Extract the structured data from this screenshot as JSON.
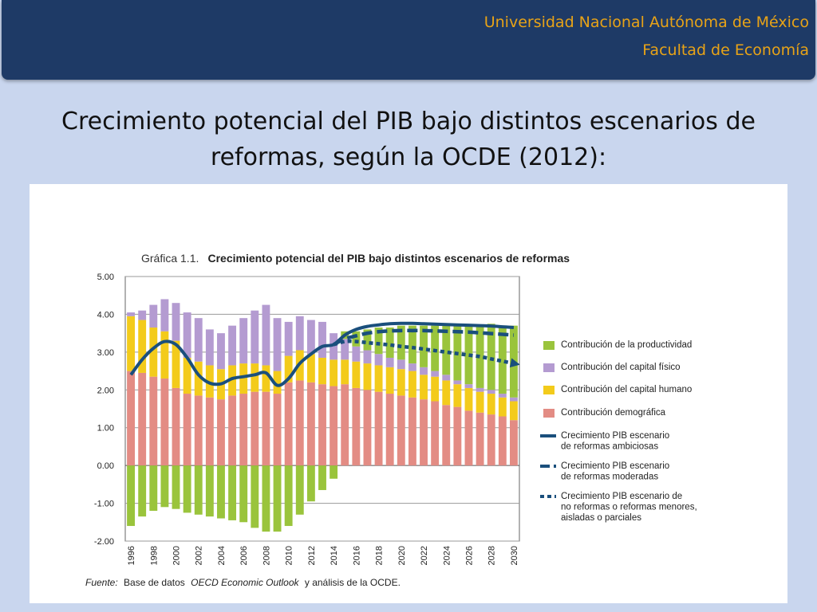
{
  "header": {
    "university": "Universidad Nacional Autónoma de México",
    "faculty": "Facultad de Economía"
  },
  "slide_title_line1": "Crecimiento potencial del PIB bajo distintos escenarios de",
  "slide_title_line2": "reformas, según la OCDE (2012):",
  "colors": {
    "header_bg": "#1e3a66",
    "header_text": "#e8a317",
    "productividad": "#9ac43c",
    "capital_fisico": "#b49bd1",
    "capital_humano": "#f3cb1b",
    "demografica": "#e38c84",
    "lineas": "#1a4f7c"
  },
  "chart_data": {
    "type": "bar",
    "figure_label": "Gráfica 1.1.",
    "title": "Crecimiento potencial del PIB bajo distintos escenarios de reformas",
    "stacked": true,
    "x": [
      1996,
      1997,
      1998,
      1999,
      2000,
      2001,
      2002,
      2003,
      2004,
      2005,
      2006,
      2007,
      2008,
      2009,
      2010,
      2011,
      2012,
      2013,
      2014,
      2015,
      2016,
      2017,
      2018,
      2019,
      2020,
      2021,
      2022,
      2023,
      2024,
      2025,
      2026,
      2027,
      2028,
      2029,
      2030
    ],
    "x_tick_labels": [
      "1996",
      "1998",
      "2000",
      "2002",
      "2004",
      "2006",
      "2008",
      "2010",
      "2012",
      "2014",
      "2016",
      "2018",
      "2020",
      "2022",
      "2024",
      "2026",
      "2028",
      "2030"
    ],
    "ylim": [
      -2,
      5
    ],
    "y_tick_labels": [
      "5.00",
      "4.00",
      "3.00",
      "2.00",
      "1.00",
      "0.00",
      "-1.00",
      "-2.00"
    ],
    "grid": true,
    "series": [
      {
        "name": "Contribución demográfica",
        "kind": "bar",
        "values": [
          2.5,
          2.45,
          2.35,
          2.3,
          2.05,
          1.9,
          1.85,
          1.8,
          1.75,
          1.85,
          1.9,
          1.95,
          1.95,
          1.9,
          2.2,
          2.25,
          2.2,
          2.15,
          2.1,
          2.15,
          2.05,
          2.0,
          1.95,
          1.9,
          1.85,
          1.8,
          1.75,
          1.7,
          1.6,
          1.55,
          1.45,
          1.4,
          1.35,
          1.3,
          1.2
        ]
      },
      {
        "name": "Contribución del capital humano",
        "kind": "bar",
        "values": [
          1.45,
          1.4,
          1.3,
          1.25,
          1.25,
          0.95,
          0.9,
          0.85,
          0.8,
          0.8,
          0.8,
          0.75,
          0.7,
          0.6,
          0.7,
          0.8,
          0.75,
          0.7,
          0.7,
          0.65,
          0.7,
          0.7,
          0.7,
          0.7,
          0.7,
          0.7,
          0.65,
          0.65,
          0.65,
          0.6,
          0.6,
          0.55,
          0.55,
          0.5,
          0.5
        ]
      },
      {
        "name": "Contribución del capital físico",
        "kind": "bar",
        "values": [
          0.1,
          0.25,
          0.6,
          0.85,
          1.0,
          1.2,
          1.15,
          0.95,
          0.95,
          1.05,
          1.2,
          1.4,
          1.6,
          1.4,
          0.9,
          0.9,
          0.9,
          0.95,
          0.7,
          0.55,
          0.4,
          0.35,
          0.3,
          0.25,
          0.25,
          0.2,
          0.2,
          0.15,
          0.15,
          0.1,
          0.1,
          0.1,
          0.1,
          0.1,
          0.1
        ]
      },
      {
        "name": "Contribución de la productividad",
        "kind": "bar",
        "values": [
          -1.6,
          -1.35,
          -1.2,
          -1.1,
          -1.15,
          -1.25,
          -1.3,
          -1.35,
          -1.4,
          -1.45,
          -1.5,
          -1.65,
          -1.75,
          -1.75,
          -1.6,
          -1.3,
          -0.95,
          -0.65,
          -0.35,
          0.2,
          0.4,
          0.55,
          0.7,
          0.8,
          0.9,
          1.0,
          1.1,
          1.2,
          1.35,
          1.45,
          1.55,
          1.65,
          1.75,
          1.8,
          1.9
        ]
      },
      {
        "name": "Crecimiento PIB escenario de reformas ambiciosas",
        "kind": "line",
        "style": "solid",
        "values": [
          2.4,
          2.8,
          3.1,
          3.28,
          3.2,
          2.85,
          2.4,
          2.18,
          2.16,
          2.3,
          2.35,
          2.4,
          2.45,
          2.12,
          2.3,
          2.7,
          2.95,
          3.15,
          3.2,
          3.45,
          3.6,
          3.68,
          3.72,
          3.75,
          3.76,
          3.76,
          3.75,
          3.74,
          3.73,
          3.72,
          3.71,
          3.7,
          3.69,
          3.67,
          3.65
        ]
      },
      {
        "name": "Crecimiento PIB escenario de reformas moderadas",
        "kind": "line",
        "style": "dashed",
        "values": [
          null,
          null,
          null,
          null,
          null,
          null,
          null,
          null,
          null,
          null,
          null,
          null,
          null,
          null,
          null,
          null,
          null,
          null,
          3.2,
          3.35,
          3.43,
          3.5,
          3.54,
          3.56,
          3.57,
          3.57,
          3.57,
          3.56,
          3.55,
          3.54,
          3.53,
          3.51,
          3.49,
          3.47,
          3.45
        ]
      },
      {
        "name": "Crecimiento PIB escenario de no reformas o reformas menores, aisladas o parciales",
        "kind": "line",
        "style": "dotted",
        "values": [
          null,
          null,
          null,
          null,
          null,
          null,
          null,
          null,
          null,
          null,
          null,
          null,
          null,
          null,
          null,
          null,
          null,
          null,
          3.2,
          3.28,
          3.28,
          3.25,
          3.22,
          3.19,
          3.15,
          3.12,
          3.08,
          3.04,
          3.0,
          2.96,
          2.92,
          2.88,
          2.82,
          2.76,
          2.7
        ]
      }
    ],
    "legend": {
      "placement": "right",
      "entries": [
        "Contribución de la productividad",
        "Contribución del capital físico",
        "Contribución del capital humano",
        "Contribución demográfica",
        [
          "Crecimiento PIB escenario",
          "de reformas ambiciosas"
        ],
        [
          "Crecimiento PIB escenario",
          "de reformas moderadas"
        ],
        [
          "Crecimiento PIB escenario de",
          "no reformas o reformas menores,",
          "aisladas o parciales"
        ]
      ]
    },
    "source": {
      "label": "Fuente:",
      "text1": "Base de datos",
      "db": "OECD Economic Outlook",
      "text2": "y análisis de la OCDE."
    }
  }
}
